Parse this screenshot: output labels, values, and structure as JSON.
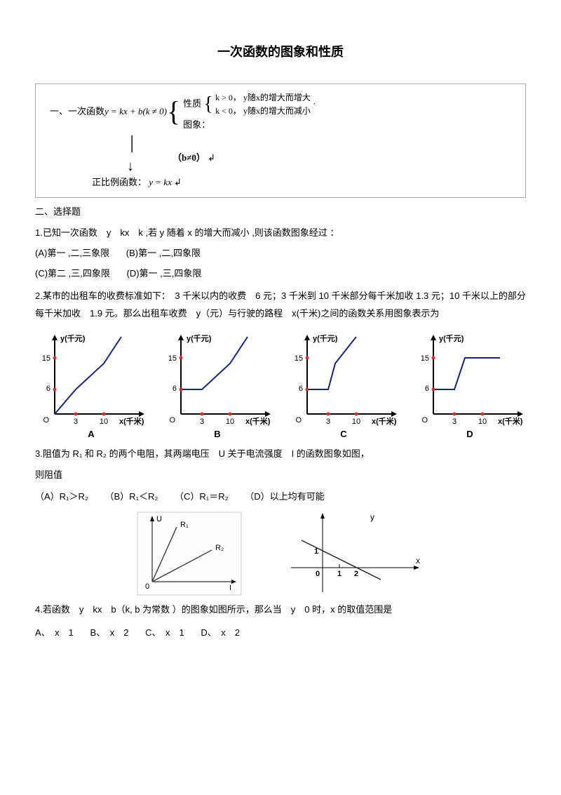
{
  "title": "一次函数的图象和性质",
  "diagram": {
    "prefix": "一、",
    "label1": "一次函数",
    "eq1": "y = kx + b(k ≠ 0)",
    "prop_label": "性质",
    "prop1": "k > 0， y随x的增大而增大",
    "prop2": "k < 0， y随x的增大而减小",
    "img_label": "图象：",
    "cond": "（b≠0）",
    "sub_label": "正比例函数：",
    "eq2": "y = kx"
  },
  "sec2": "二、选择题",
  "q1": {
    "text": "1.已知一次函数　y　kx　k ,若 y 随着 x 的增大而减小 ,则该函数图象经过 ：",
    "optA": "(A)第一 ,二,三象限",
    "optB": "(B)第一 ,二,四象限",
    "optC": "(C)第二 ,三,四象限",
    "optD": "(D)第一 ,三,四象限"
  },
  "q2": {
    "text": "2.某市的出租车的收费标准如下：　3 千米以内的收费　6 元；3 千米到 10 千米部分每千米加收 1.3 元；10 千米以上的部分每千米加收　1.9 元。那么出租车收费　y（元）与行驶的路程　x(千米)之间的函数关系用图象表示为"
  },
  "charts": {
    "ylabel": "y(千元)",
    "xlabel": "x(千米)",
    "ytick1": 6,
    "ytick2": 15,
    "xtick1": 3,
    "xtick2": 10,
    "labels": [
      "A",
      "B",
      "C",
      "D"
    ],
    "axis_color": "#000000",
    "line_color": "#1a237e",
    "dot_color": "#d32f2f",
    "bg": "#ffffff",
    "width": 160,
    "height": 150,
    "series": [
      {
        "pts": [
          [
            0,
            0
          ],
          [
            30,
            35
          ],
          [
            70,
            72
          ],
          [
            95,
            110
          ]
        ],
        "start_at_origin": true
      },
      {
        "pts": [
          [
            0,
            35
          ],
          [
            30,
            35
          ],
          [
            70,
            72
          ],
          [
            95,
            110
          ]
        ],
        "start_at_origin": false
      },
      {
        "pts": [
          [
            0,
            35
          ],
          [
            30,
            35
          ],
          [
            40,
            72
          ],
          [
            70,
            110
          ]
        ],
        "start_at_origin": false
      },
      {
        "pts": [
          [
            0,
            35
          ],
          [
            30,
            35
          ],
          [
            45,
            80
          ],
          [
            95,
            80
          ]
        ],
        "start_at_origin": false
      }
    ]
  },
  "q3": {
    "text_a": "3.阻值为 ",
    "r1": "R₁",
    "mid1": "和 ",
    "r2": "R₂",
    "text_b": "的两个电阻，其两端电压　U 关于电流强度　I 的函数图象如图，",
    "text_c": "则阻值",
    "optA": "（A）R₁＞R₂",
    "optB": "（B）R₁＜R₂",
    "optC": "（C）R₁＝R₂",
    "optD": "（D）以上均有可能"
  },
  "fig3a": {
    "ylabel": "U",
    "xlabel": "I",
    "line1_label": "R₁",
    "line2_label": "R₂",
    "line_color": "#444444",
    "axis_color": "#000000"
  },
  "fig3b": {
    "ylabel": "y",
    "xlabel": "x",
    "y_int": 1,
    "x_int": 2,
    "mid_x": 1,
    "line_color": "#222222",
    "axis_color": "#000000"
  },
  "q4": {
    "text": "4.若函数　y　kx　b（k, b 为常数 ）的图象如图所示，那么当　y　0 时，x 的取值范围是",
    "optA": "A、　x　1",
    "optB": "B、　x　2",
    "optC": "C、　x　1",
    "optD": "D、　x　2"
  }
}
